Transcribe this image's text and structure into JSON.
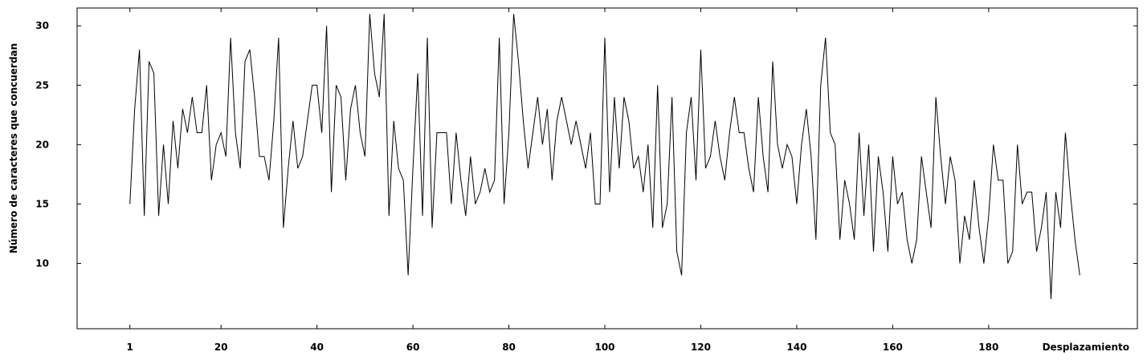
{
  "chart_data": {
    "type": "line",
    "title": "",
    "xlabel": "Desplazamiento",
    "ylabel": "Número de caracteres que concuerdan",
    "xlim": [
      -10,
      211
    ],
    "ylim": [
      4.5,
      31.5
    ],
    "x_ticks": [
      1,
      20,
      40,
      60,
      80,
      100,
      120,
      140,
      160,
      180
    ],
    "y_ticks": [
      10,
      15,
      20,
      25,
      30
    ],
    "grid": false,
    "legend": "none",
    "line_color": "#000000",
    "series": [
      {
        "x_start": 1,
        "values": [
          15,
          23,
          28,
          14,
          27,
          26,
          14,
          20,
          15,
          22,
          18,
          23,
          21,
          24,
          21,
          21,
          25,
          17,
          20,
          21,
          19,
          29,
          21,
          18,
          27,
          28,
          24,
          19,
          19,
          17,
          22,
          29,
          13,
          18,
          22,
          18,
          19,
          22,
          25,
          25,
          21,
          30,
          16,
          25,
          24,
          17,
          23,
          25,
          21,
          19,
          31,
          26,
          24,
          31,
          14,
          22,
          18,
          17,
          9,
          18,
          26,
          14,
          29,
          13,
          21,
          21,
          21,
          15,
          21,
          17,
          14,
          19,
          15,
          16,
          18,
          16,
          17,
          29,
          15,
          21,
          31,
          27,
          22,
          18,
          21,
          24,
          20,
          23,
          17,
          22,
          24,
          22,
          20,
          22,
          20,
          18,
          21,
          15,
          15,
          29,
          16,
          24,
          18,
          24,
          22,
          18,
          19,
          16,
          20,
          13,
          25,
          13,
          15,
          24,
          11,
          9,
          21,
          24,
          17,
          28,
          18,
          19,
          22,
          19,
          17,
          21,
          24,
          21,
          21,
          18,
          16,
          24,
          19,
          16,
          27,
          20,
          18,
          20,
          19,
          15,
          20,
          23,
          19,
          12,
          25,
          29,
          21,
          20,
          12,
          17,
          15,
          12,
          21,
          14,
          20,
          11,
          19,
          16,
          11,
          19,
          15,
          16,
          12,
          10,
          12,
          19,
          16,
          13,
          24,
          19,
          15,
          19,
          17,
          10,
          14,
          12,
          17,
          13,
          10,
          14,
          20,
          17,
          17,
          10,
          11,
          20,
          15,
          16,
          16,
          11,
          13,
          16,
          7,
          16,
          13,
          21,
          16,
          12,
          9
        ]
      }
    ]
  }
}
